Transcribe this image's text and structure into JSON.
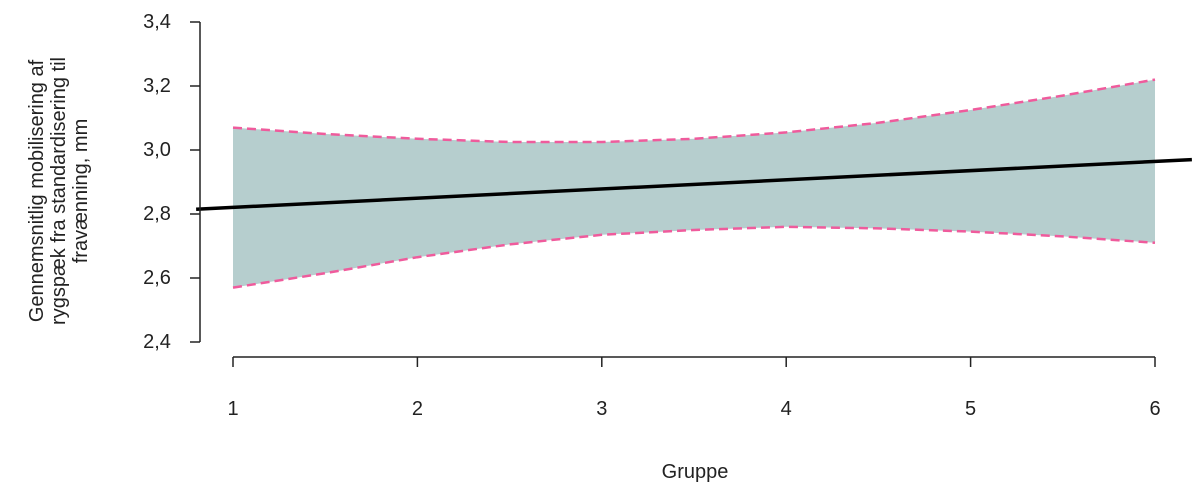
{
  "chart_data": {
    "type": "line",
    "title": "",
    "xlabel": "Gruppe",
    "ylabel_lines": [
      "Gennemsnitlig mobilisering af",
      "rygspæk fra standardisering til",
      "fravænning, mm"
    ],
    "x_ticks": [
      1,
      2,
      3,
      4,
      5,
      6
    ],
    "x_tick_labels": [
      "1",
      "2",
      "3",
      "4",
      "5",
      "6"
    ],
    "y_ticks": [
      2.4,
      2.6,
      2.8,
      3.0,
      3.2,
      3.4
    ],
    "y_tick_labels": [
      "2,4",
      "2,6",
      "2,8",
      "3,0",
      "3,2",
      "3,4"
    ],
    "xlim": [
      1,
      6
    ],
    "ylim": [
      2.4,
      3.4
    ],
    "trend_line": {
      "x": [
        0.8,
        6.2
      ],
      "y": [
        2.815,
        2.97
      ]
    },
    "band": {
      "x": [
        1,
        1.5,
        2,
        2.5,
        3,
        3.5,
        4,
        4.5,
        5,
        5.5,
        6
      ],
      "upper": [
        3.07,
        3.05,
        3.035,
        3.025,
        3.025,
        3.035,
        3.055,
        3.085,
        3.125,
        3.17,
        3.22
      ],
      "lower": [
        2.57,
        2.615,
        2.665,
        2.705,
        2.735,
        2.75,
        2.76,
        2.755,
        2.745,
        2.73,
        2.71
      ]
    },
    "colors": {
      "band_fill": "#b6cece",
      "band_edge": "#ef5b9c",
      "trend_line": "#000000",
      "axis": "#222222"
    },
    "grid": false,
    "legend": "none"
  }
}
